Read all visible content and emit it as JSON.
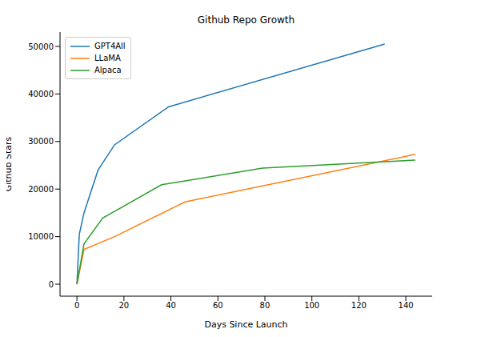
{
  "chart_data": {
    "type": "line",
    "title": "Github Repo Growth",
    "x_label": "Days Since Launch",
    "y_label": "Github Stars",
    "xlim": [
      -7.2,
      151.2
    ],
    "xticks": [
      0,
      20,
      40,
      60,
      80,
      100,
      120,
      140
    ],
    "ylim": [
      -2525,
      53025
    ],
    "yticks": [
      0,
      10000,
      20000,
      30000,
      40000,
      50000
    ],
    "legend": "upper left",
    "grid": false,
    "series": [
      {
        "name": "GPT4All",
        "color": "#1f77b4",
        "x": [
          0,
          1,
          3,
          9,
          16,
          39,
          131
        ],
        "values": [
          0,
          10500,
          15000,
          24000,
          29300,
          37300,
          50500
        ]
      },
      {
        "name": "LLaMA",
        "color": "#ff7f0e",
        "x": [
          0,
          3,
          16,
          46,
          144
        ],
        "values": [
          0,
          7300,
          10000,
          17300,
          27300
        ]
      },
      {
        "name": "Alpaca",
        "color": "#2ca02c",
        "x": [
          0,
          3,
          11,
          36,
          79,
          144
        ],
        "values": [
          0,
          8500,
          13900,
          20900,
          24400,
          26100
        ]
      }
    ]
  }
}
